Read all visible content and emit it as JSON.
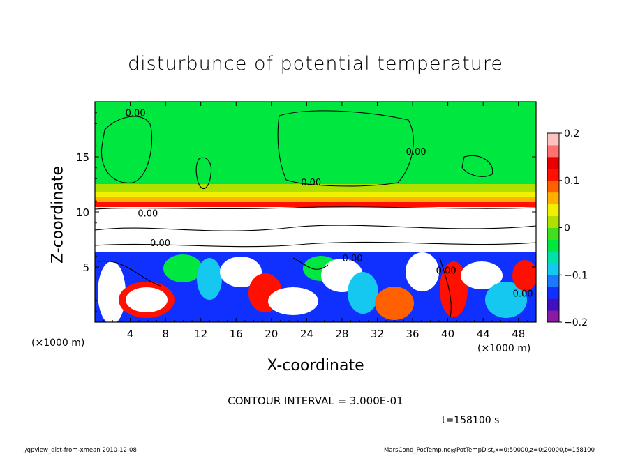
{
  "chart_data": {
    "type": "heatmap",
    "title": "disturbunce of potential temperature",
    "xlabel": "X-coordinate",
    "ylabel": "Z-coordinate",
    "x_unit": "(×1000 m)",
    "x_ticks": [
      4,
      8,
      12,
      16,
      20,
      24,
      28,
      32,
      36,
      40,
      44,
      48
    ],
    "y_ticks": [
      5,
      10,
      15
    ],
    "xlim": [
      0,
      50
    ],
    "ylim": [
      0,
      20
    ],
    "colorbar": {
      "ticks": [
        "0.2",
        "0.1",
        "0",
        "−0.1",
        "−0.2"
      ],
      "tick_values": [
        0.2,
        0.1,
        0,
        -0.1,
        -0.2
      ],
      "range": [
        -0.2,
        0.2
      ],
      "colors": [
        "#8a1aa6",
        "#4010c0",
        "#1030ff",
        "#1e78ff",
        "#14c8f0",
        "#00e0a8",
        "#00e840",
        "#40e020",
        "#b0e000",
        "#f0f000",
        "#ffb000",
        "#ff6000",
        "#ff1000",
        "#e80000",
        "#ff7070",
        "#ffc0c0"
      ]
    },
    "contour_labels": [
      {
        "text": "0.00",
        "x": 4.6,
        "z": 18.7
      },
      {
        "text": "0.00",
        "x": 24.5,
        "z": 12.4
      },
      {
        "text": "0.00",
        "x": 36.4,
        "z": 15.2
      },
      {
        "text": "0.00",
        "x": 6.0,
        "z": 9.6
      },
      {
        "text": "0.00",
        "x": 7.4,
        "z": 6.9
      },
      {
        "text": "0.00",
        "x": 29.2,
        "z": 5.5
      },
      {
        "text": "0.00",
        "x": 39.8,
        "z": 4.4
      },
      {
        "text": "0.00",
        "x": 48.5,
        "z": 2.3
      }
    ],
    "contour_interval": "CONTOUR INTERVAL = 3.000E-01",
    "time": "t=158100 s"
  },
  "footer": {
    "left": "./gpview_dist-from-xmean  2010-12-08",
    "right": "MarsCond_PotTemp.nc@PotTempDist,x=0:50000,z=0:20000,t=158100"
  }
}
